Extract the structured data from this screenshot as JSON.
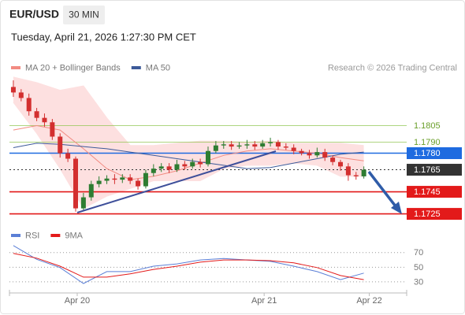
{
  "header": {
    "symbol": "EUR/USD",
    "timeframe": "30 MIN",
    "datetime": "Tuesday, April 21, 2026 1:27:30 PM CET"
  },
  "chart_data": [
    {
      "type": "candlestick",
      "credit": "Research © 2026 Trading Central",
      "up_color": "#2e7d32",
      "down_color": "#d32f2f",
      "xlim": [
        -0.5,
        50.5
      ],
      "ylim": [
        1.1719,
        1.1851
      ],
      "open": [
        1.184,
        1.1835,
        1.183,
        1.1818,
        1.1812,
        1.1808,
        1.1795,
        1.178,
        1.1775,
        1.173,
        1.174,
        1.1752,
        1.1755,
        1.1757,
        1.1756,
        1.1758,
        1.1755,
        1.175,
        1.1762,
        1.1766,
        1.1768,
        1.1765,
        1.177,
        1.1768,
        1.1772,
        1.177,
        1.1782,
        1.1787,
        1.1788,
        1.1786,
        1.1787,
        1.1788,
        1.1786,
        1.1789,
        1.179,
        1.1786,
        1.1785,
        1.1782,
        1.178,
        1.1778,
        1.1781,
        1.1776,
        1.1772,
        1.1768,
        1.176,
        1.1759
      ],
      "high": [
        1.1846,
        1.1838,
        1.1834,
        1.1821,
        1.1816,
        1.1811,
        1.1798,
        1.1784,
        1.1777,
        1.1744,
        1.1755,
        1.1759,
        1.176,
        1.1761,
        1.1761,
        1.1761,
        1.1757,
        1.1765,
        1.177,
        1.1771,
        1.1771,
        1.1774,
        1.1773,
        1.1775,
        1.1775,
        1.1786,
        1.1791,
        1.1791,
        1.1791,
        1.179,
        1.1792,
        1.1791,
        1.1792,
        1.1794,
        1.1792,
        1.1789,
        1.1788,
        1.1784,
        1.1783,
        1.1785,
        1.1784,
        1.1778,
        1.1774,
        1.1771,
        1.1763,
        1.1768
      ],
      "low": [
        1.1831,
        1.1827,
        1.1814,
        1.1809,
        1.1804,
        1.1792,
        1.1776,
        1.1772,
        1.1727,
        1.1728,
        1.1737,
        1.1749,
        1.1752,
        1.1752,
        1.1753,
        1.1752,
        1.1747,
        1.1748,
        1.1759,
        1.1763,
        1.1762,
        1.1763,
        1.1765,
        1.1766,
        1.1767,
        1.1768,
        1.178,
        1.1784,
        1.1783,
        1.1784,
        1.1784,
        1.1783,
        1.1784,
        1.1786,
        1.1783,
        1.1783,
        1.1779,
        1.1778,
        1.1775,
        1.1776,
        1.1773,
        1.1769,
        1.1764,
        1.1755,
        1.1756,
        1.1757
      ],
      "close": [
        1.1835,
        1.183,
        1.1818,
        1.1812,
        1.1808,
        1.1795,
        1.178,
        1.1775,
        1.173,
        1.174,
        1.1752,
        1.1755,
        1.1757,
        1.1756,
        1.1758,
        1.1755,
        1.175,
        1.1762,
        1.1766,
        1.1768,
        1.1765,
        1.177,
        1.1768,
        1.1772,
        1.177,
        1.1782,
        1.1787,
        1.1788,
        1.1786,
        1.1787,
        1.1788,
        1.1786,
        1.1789,
        1.179,
        1.1786,
        1.1785,
        1.1782,
        1.178,
        1.1778,
        1.1781,
        1.1776,
        1.1772,
        1.1768,
        1.176,
        1.1759,
        1.1765
      ],
      "overlays": {
        "x": [
          0,
          3,
          6,
          9,
          12,
          15,
          18,
          21,
          24,
          27,
          30,
          33,
          36,
          39,
          42,
          45
        ],
        "series": [
          {
            "name": "MA 20 + Bollinger Bands",
            "color": "#f28b82",
            "band_color": "#fde0e0",
            "values": [
              1.1801,
              1.1805,
              1.1801,
              1.1784,
              1.1766,
              1.1756,
              1.1759,
              1.1764,
              1.1771,
              1.1778,
              1.1782,
              1.1784,
              1.1782,
              1.178,
              1.1776,
              1.1773
            ],
            "upper": [
              1.1849,
              1.1844,
              1.1837,
              1.1841,
              1.1812,
              1.1787,
              1.1787,
              1.1789,
              1.1791,
              1.1791,
              1.179,
              1.1791,
              1.1789,
              1.1789,
              1.1789,
              1.1787
            ],
            "lower": [
              1.1826,
              1.1798,
              1.1766,
              1.173,
              1.1741,
              1.1748,
              1.1755,
              1.1755,
              1.1755,
              1.1766,
              1.1769,
              1.1769,
              1.1771,
              1.1769,
              1.1759,
              1.1759
            ]
          },
          {
            "name": "MA 50",
            "color": "#3d5a99",
            "values": [
              1.1785,
              1.1789,
              1.1788,
              1.1786,
              1.1784,
              1.1781,
              1.1778,
              1.1775,
              1.1772,
              1.1769,
              1.1766,
              1.1767,
              1.1771,
              1.1775,
              1.1779,
              1.1781
            ]
          }
        ]
      },
      "levels": [
        {
          "value": 1.1805,
          "color": "#8bc34a"
        },
        {
          "value": 1.179,
          "label": "1.1790",
          "color": "#8bc34a"
        },
        {
          "value": 1.178,
          "label": "1.1780",
          "color": "#1e6be0",
          "boxed": true
        },
        {
          "value": 1.1765,
          "color": "#333333",
          "boxed": true,
          "dashed": true
        },
        {
          "value": 1.1745,
          "color": "#e31a1a",
          "boxed": true
        },
        {
          "value": 1.1725,
          "color": "#e31a1a",
          "boxed": true
        }
      ]
    },
    {
      "type": "line",
      "xlim": [
        -0.5,
        50.5
      ],
      "ylim": [
        17,
        87
      ],
      "yticks": [
        30,
        50,
        70
      ],
      "xticks": [
        {
          "value": 8.2,
          "label": "Apr 20"
        },
        {
          "value": 32.2,
          "label": "Apr 21"
        },
        {
          "value": 45.7,
          "label": "Apr 22"
        }
      ],
      "x": [
        0,
        3,
        6,
        9,
        12,
        15,
        18,
        21,
        24,
        27,
        30,
        33,
        36,
        39,
        42,
        45
      ],
      "series": [
        {
          "name": "RSI",
          "color": "#5b7fd6",
          "values": [
            79.7,
            60.8,
            49.5,
            27.8,
            44,
            44,
            51.5,
            54.6,
            60,
            62,
            60,
            58,
            51.5,
            44,
            33,
            42
          ]
        },
        {
          "name": "9MA",
          "color": "#e31a1a",
          "values": [
            69,
            62.4,
            51.5,
            36.5,
            36.5,
            41,
            47,
            51.5,
            57,
            60,
            60,
            59,
            56,
            49.5,
            38.6,
            33
          ]
        }
      ]
    }
  ]
}
